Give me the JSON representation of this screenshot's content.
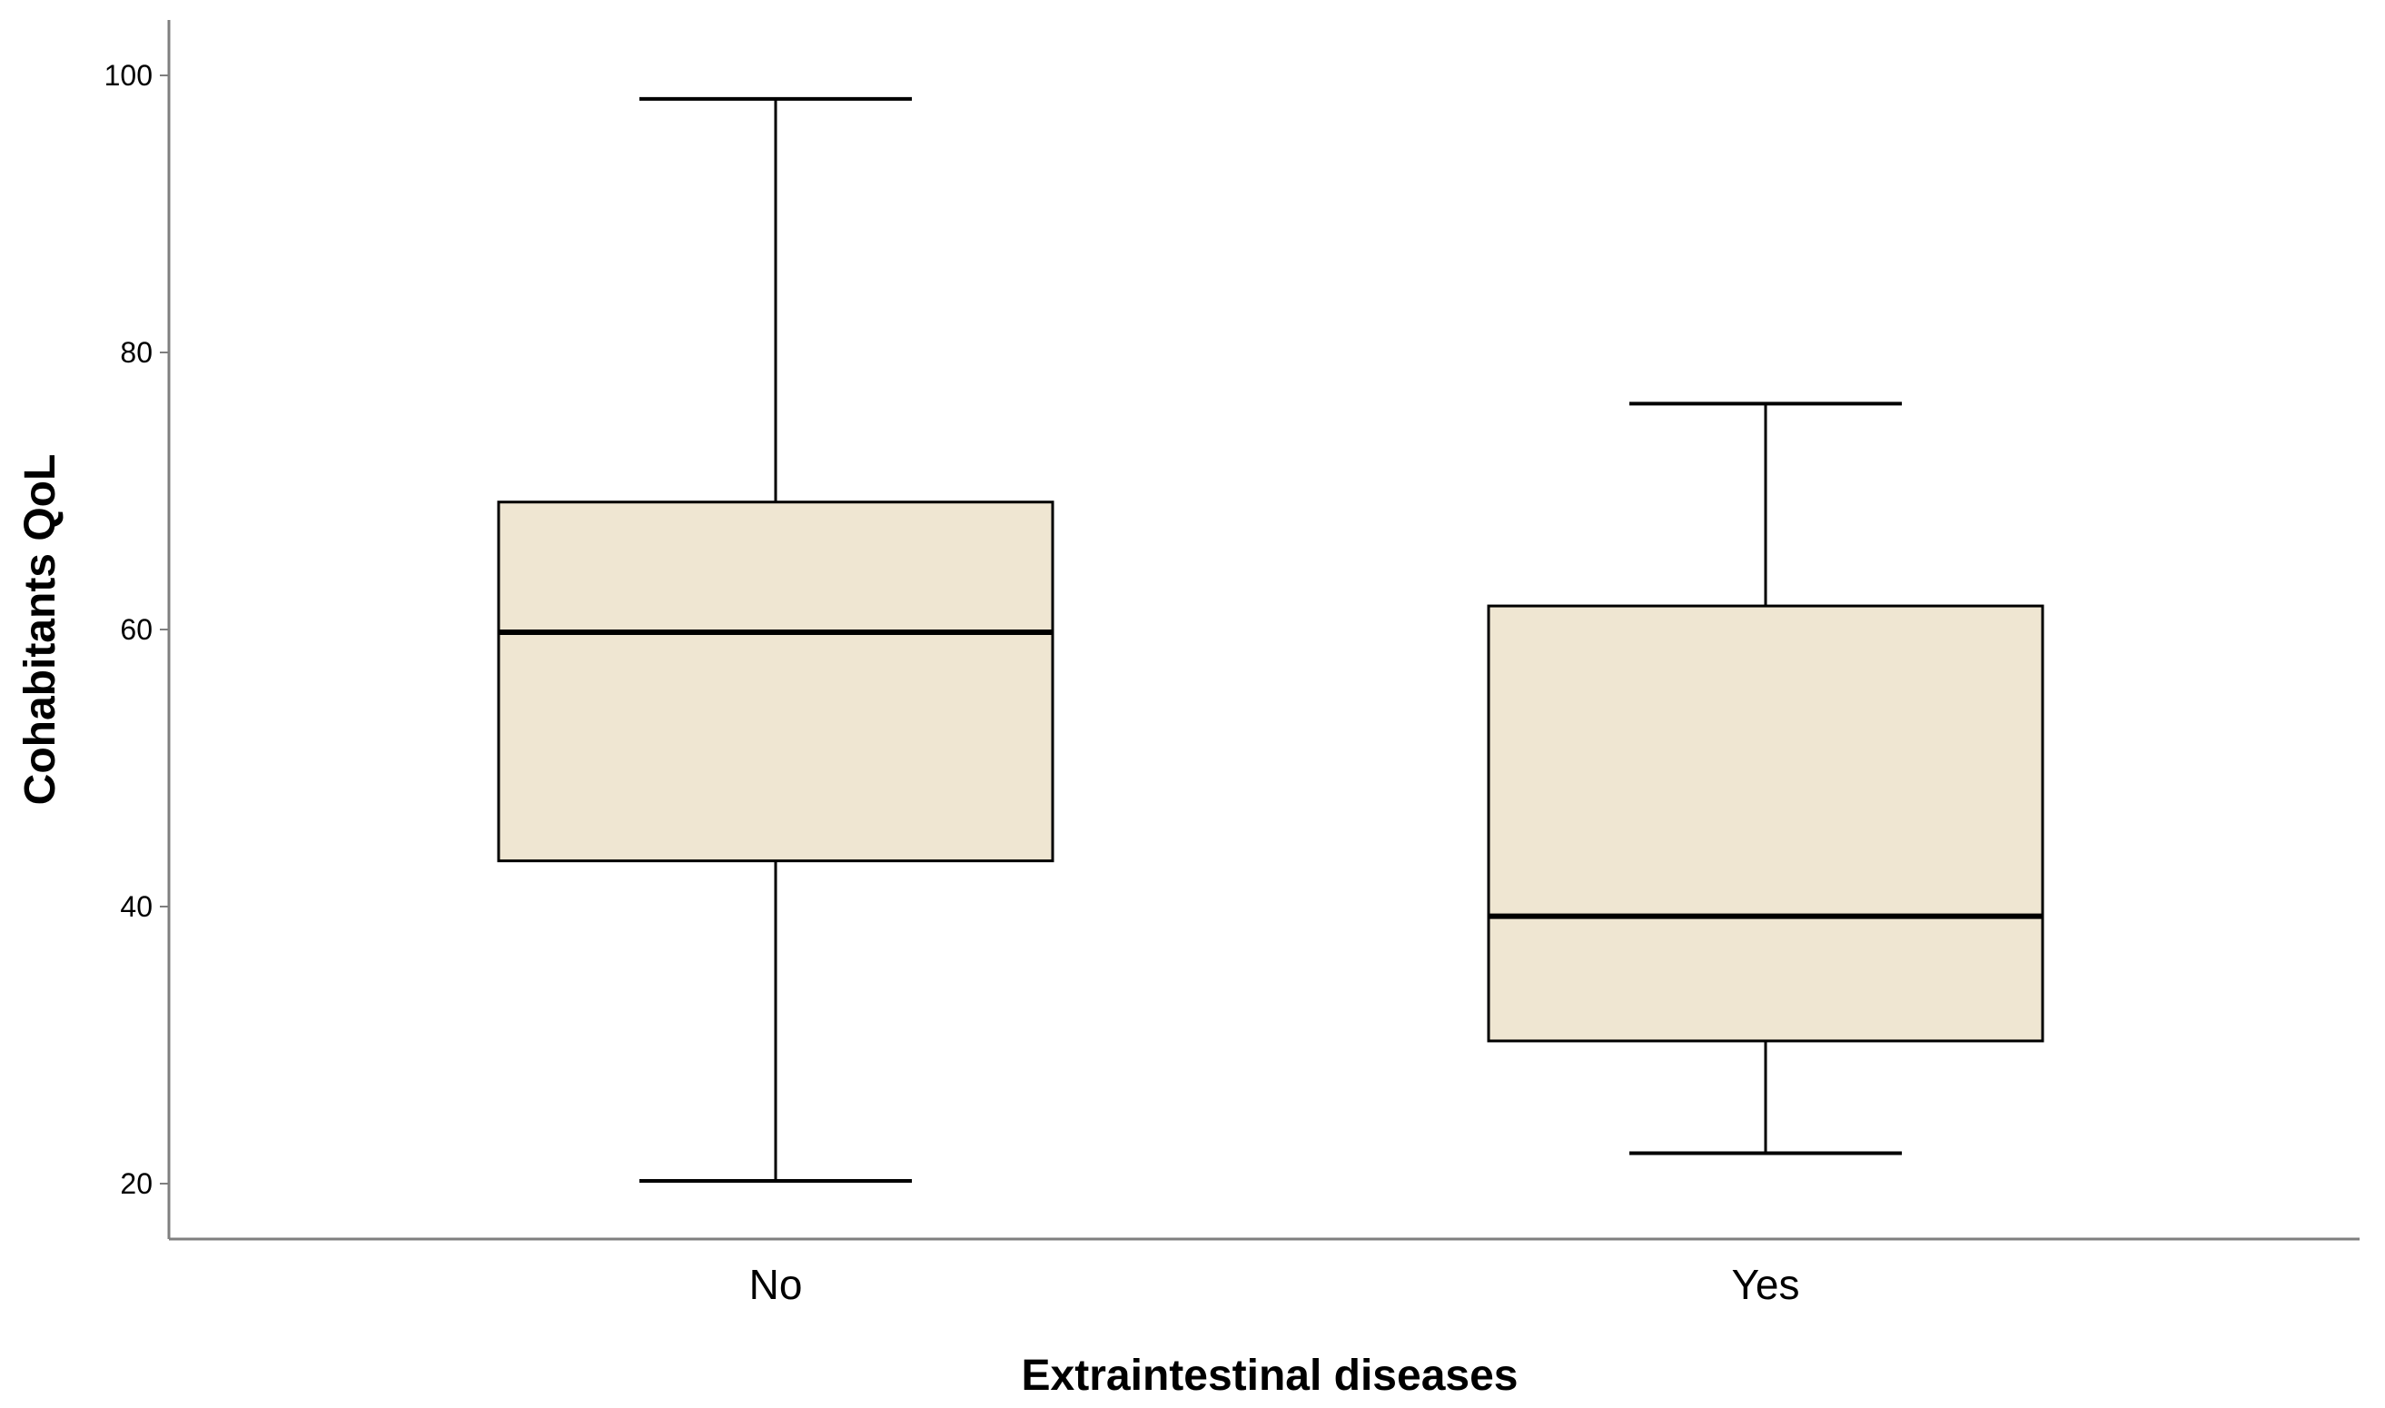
{
  "chart_data": {
    "type": "box",
    "title": "",
    "xlabel": "Extraintestinal diseases",
    "ylabel": "Cohabitants QoL",
    "ylim": [
      16,
      104
    ],
    "yticks": [
      20,
      40,
      60,
      80,
      100
    ],
    "grid": false,
    "legend": "none",
    "box_fill": "#efe6d2",
    "line_color": "#000000",
    "categories": [
      "No",
      "Yes"
    ],
    "boxes": [
      {
        "category": "No",
        "min": 20.2,
        "q1": 43.3,
        "median": 59.8,
        "q3": 69.2,
        "max": 98.3
      },
      {
        "category": "Yes",
        "min": 22.2,
        "q1": 30.3,
        "median": 39.3,
        "q3": 61.7,
        "max": 76.3
      }
    ]
  }
}
